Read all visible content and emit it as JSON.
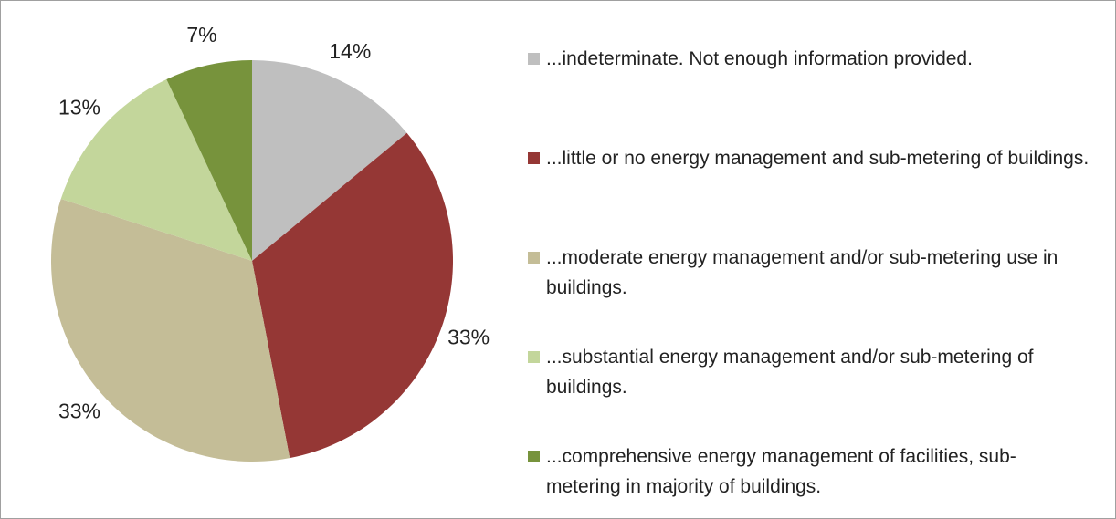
{
  "chart_data": {
    "type": "pie",
    "categories": [
      "...indeterminate. Not enough information provided.",
      "...little or no energy management and sub-metering of buildings.",
      "...moderate energy management and/or sub-metering use in buildings.",
      "...substantial energy management and/or sub-metering of buildings.",
      "...comprehensive energy management of facilities, sub-metering in majority of buildings."
    ],
    "values": [
      14,
      33,
      33,
      13,
      7
    ],
    "value_labels": [
      "14%",
      "33%",
      "33%",
      "13%",
      "7%"
    ],
    "colors": [
      "#bfbfbf",
      "#953735",
      "#c4bd97",
      "#c3d69b",
      "#77933c"
    ],
    "legend": "right"
  }
}
